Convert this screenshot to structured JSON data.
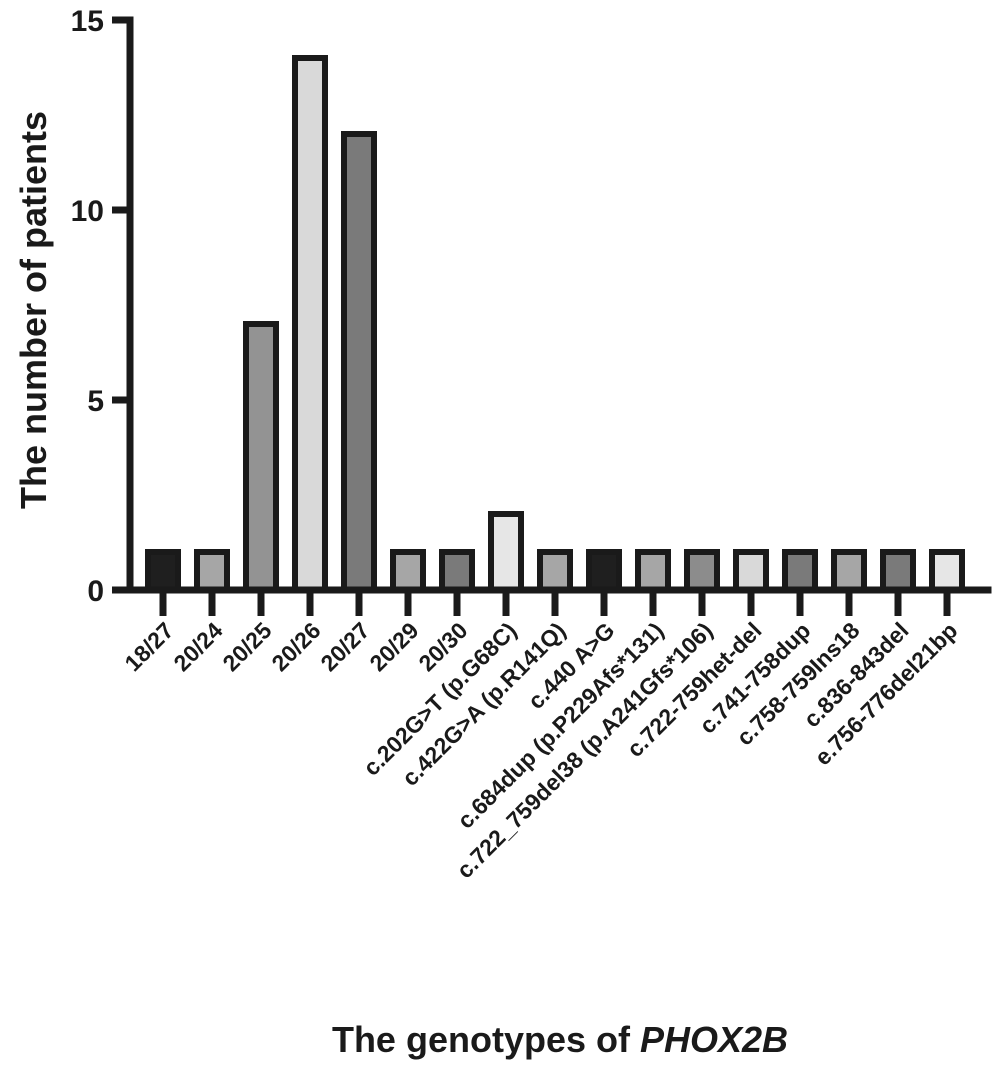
{
  "chart_data": {
    "type": "bar",
    "title": "",
    "ylabel": "The number of patients",
    "xlabel": "The genotypes of ",
    "xlabel_italic": "PHOX2B",
    "ylim": [
      0,
      15
    ],
    "yticks": [
      "0",
      "5",
      "10",
      "15"
    ],
    "categories": [
      "18/27",
      "20/24",
      "20/25",
      "20/26",
      "20/27",
      "20/29",
      "20/30",
      "c.202G>T (p.G68C)",
      "c.422G>A (p.R141Q)",
      "c.440 A>G",
      "c.684dup (p.P229Afs*131)",
      "c.722_759del38 (p.A241Gfs*106)",
      "c.722-759het-del",
      "c.741-758dup",
      "c.758-759Ins18",
      "c.836-843del",
      "e.756-776del21bp"
    ],
    "values": [
      1,
      1,
      7,
      14,
      12,
      1,
      1,
      2,
      1,
      1,
      1,
      1,
      1,
      1,
      1,
      1,
      1
    ],
    "colors": [
      "#1f1f1f",
      "#a6a6a6",
      "#939393",
      "#d9d9d9",
      "#7a7a7a",
      "#a6a6a6",
      "#7a7a7a",
      "#e6e6e6",
      "#a6a6a6",
      "#1f1f1f",
      "#a6a6a6",
      "#8c8c8c",
      "#d9d9d9",
      "#7a7a7a",
      "#a6a6a6",
      "#7a7a7a",
      "#e6e6e6"
    ],
    "grid": false,
    "legend": "none"
  }
}
